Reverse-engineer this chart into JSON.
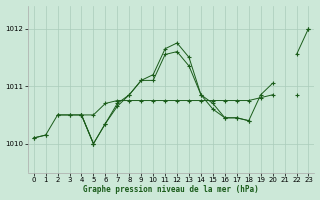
{
  "title": "Graphe pression niveau de la mer (hPa)",
  "background_color": "#cce8d8",
  "grid_color": "#aaccbb",
  "line_color": "#1a5c1a",
  "xlim": [
    -0.5,
    23.5
  ],
  "ylim": [
    1009.5,
    1012.4
  ],
  "yticks": [
    1010,
    1011,
    1012
  ],
  "xticks": [
    0,
    1,
    2,
    3,
    4,
    5,
    6,
    7,
    8,
    9,
    10,
    11,
    12,
    13,
    14,
    15,
    16,
    17,
    18,
    19,
    20,
    21,
    22,
    23
  ],
  "series": [
    {
      "x": [
        0,
        1,
        2,
        3,
        4,
        5,
        6,
        7,
        8,
        9,
        10,
        11,
        12,
        13,
        14,
        15,
        16,
        17,
        18,
        19,
        20,
        21,
        22,
        23
      ],
      "y": [
        1010.1,
        1010.15,
        null,
        null,
        null,
        null,
        null,
        null,
        null,
        null,
        null,
        null,
        null,
        null,
        null,
        null,
        null,
        null,
        null,
        null,
        null,
        null,
        null,
        1012.0
      ]
    },
    {
      "x": [
        2,
        3,
        4,
        5
      ],
      "y": [
        1010.5,
        1010.5,
        1010.5,
        1010.0
      ]
    },
    {
      "x": [
        0,
        1,
        2,
        3,
        4,
        5,
        6,
        7,
        8,
        9,
        10,
        11,
        12,
        13,
        14,
        15,
        16,
        17,
        18,
        19,
        20,
        21,
        22,
        23
      ],
      "y": [
        null,
        null,
        null,
        null,
        1010.5,
        1010.5,
        1010.7,
        1010.75,
        1010.75,
        1010.75,
        1010.75,
        1010.75,
        1010.75,
        1010.75,
        1010.75,
        1010.75,
        1010.75,
        1010.75,
        1010.75,
        1010.8,
        1010.85,
        null,
        1010.85,
        null
      ]
    },
    {
      "x": [
        0,
        1,
        2,
        3,
        4,
        5,
        6,
        7,
        8,
        9,
        10,
        11,
        12,
        13,
        14,
        15,
        16,
        17,
        18,
        19,
        20,
        21,
        22,
        23
      ],
      "y": [
        null,
        null,
        null,
        null,
        1010.5,
        1010.0,
        1010.35,
        1010.65,
        1010.85,
        1011.1,
        1011.2,
        1011.65,
        1011.75,
        1011.5,
        1010.85,
        1010.7,
        1010.45,
        1010.45,
        1010.4,
        null,
        null,
        null,
        null,
        null
      ]
    },
    {
      "x": [
        0,
        1,
        2,
        3,
        4,
        5,
        6,
        7,
        8,
        9,
        10,
        11,
        12,
        13,
        14,
        15,
        16,
        17,
        18,
        19,
        20,
        21,
        22,
        23
      ],
      "y": [
        1010.1,
        1010.15,
        1010.5,
        1010.5,
        1010.5,
        1010.0,
        1010.35,
        1010.7,
        1010.85,
        1011.1,
        1011.1,
        1011.55,
        1011.6,
        1011.35,
        1010.85,
        1010.6,
        1010.45,
        1010.45,
        1010.4,
        1010.85,
        1011.05,
        null,
        1011.55,
        1012.0
      ]
    }
  ]
}
